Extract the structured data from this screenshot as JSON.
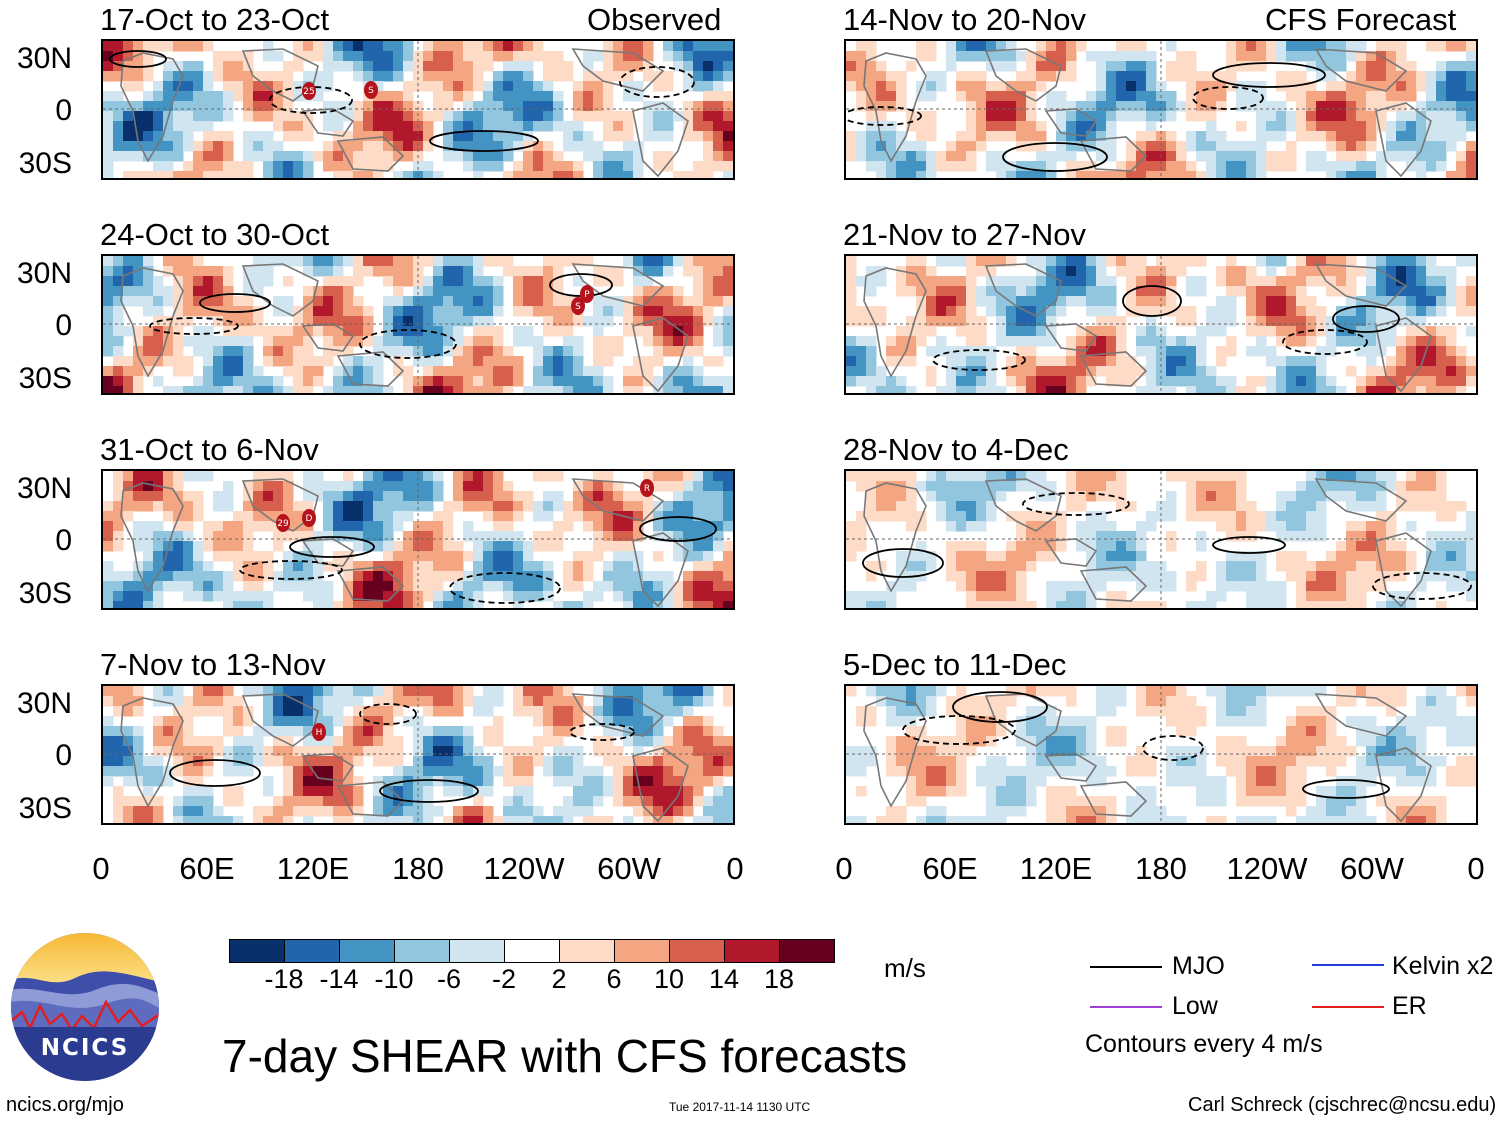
{
  "header": {
    "observed_label": "Observed",
    "forecast_label": "CFS Forecast"
  },
  "panels": [
    {
      "date_range": "17-Oct to 23-Oct",
      "storms": [
        "25",
        "S"
      ]
    },
    {
      "date_range": "24-Oct to 30-Oct",
      "storms": [
        "P",
        "S"
      ]
    },
    {
      "date_range": "31-Oct to 6-Nov",
      "storms": [
        "29",
        "D",
        "R"
      ]
    },
    {
      "date_range": "7-Nov to 13-Nov",
      "storms": [
        "H"
      ]
    },
    {
      "date_range": "14-Nov to 20-Nov",
      "storms": []
    },
    {
      "date_range": "21-Nov to 27-Nov",
      "storms": []
    },
    {
      "date_range": "28-Nov to 4-Dec",
      "storms": []
    },
    {
      "date_range": "5-Dec to 11-Dec",
      "storms": []
    }
  ],
  "axes": {
    "lat_labels": [
      "30N",
      "0",
      "30S"
    ],
    "lon_labels": [
      "0",
      "60E",
      "120E",
      "180",
      "120W",
      "60W",
      "0"
    ]
  },
  "colorbar": {
    "unit": "m/s",
    "labels": [
      "-18",
      "-14",
      "-10",
      "-6",
      "-2",
      "2",
      "6",
      "10",
      "14",
      "18"
    ],
    "colors": [
      "#08306b",
      "#2166ac",
      "#4393c3",
      "#92c5de",
      "#d1e5f0",
      "#ffffff",
      "#fddbc7",
      "#f4a582",
      "#d6604d",
      "#b2182b",
      "#67001f"
    ]
  },
  "legend": {
    "items": [
      {
        "label": "MJO",
        "color": "#000000"
      },
      {
        "label": "Kelvin x2",
        "color": "#1f3fd6"
      },
      {
        "label": "Low",
        "color": "#9b3fd6"
      },
      {
        "label": "ER",
        "color": "#e0201c"
      }
    ],
    "contour_note": "Contours every 4 m/s"
  },
  "logo": {
    "text": "NCICS"
  },
  "footer": {
    "title": "7-day SHEAR with CFS forecasts",
    "url": "ncics.org/mjo",
    "timestamp": "Tue 2017-11-14 1130 UTC",
    "author": "Carl Schreck (cjschrec@ncsu.edu)"
  }
}
